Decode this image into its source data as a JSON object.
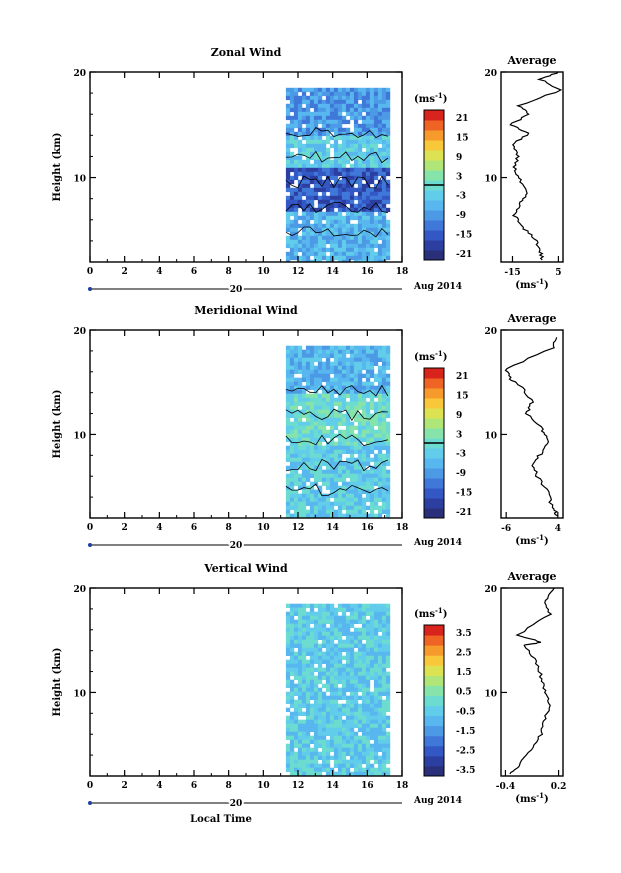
{
  "colorbar_colors": [
    "#2a2f7a",
    "#2c3fa0",
    "#3357c4",
    "#3f78d9",
    "#4c9ae5",
    "#58b7ee",
    "#62cdea",
    "#6ddcd0",
    "#86e3a9",
    "#b0e577",
    "#dde253",
    "#f8c83a",
    "#f79a2c",
    "#ef6424",
    "#d9231d"
  ],
  "date_label": "Aug 2014",
  "date_marker": "20",
  "xlabel": "Local Time",
  "ylabel": "Height (km)",
  "cb_unit": "(ms",
  "cb_unit_sup": "-1",
  "avg_unit": "(ms",
  "avg_unit_sup": "-1",
  "panels": [
    {
      "title": "Zonal Wind",
      "avg_title": "Average",
      "cb_ticks": [
        "21",
        "15",
        "9",
        "3",
        "-3",
        "-9",
        "-15",
        "-21"
      ],
      "avg_xticks": [
        "-15",
        "5"
      ]
    },
    {
      "title": "Meridional Wind",
      "avg_title": "Average",
      "cb_ticks": [
        "21",
        "15",
        "9",
        "3",
        "-3",
        "-9",
        "-15",
        "-21"
      ],
      "avg_xticks": [
        "-6",
        "4"
      ]
    },
    {
      "title": "Vertical Wind",
      "avg_title": "Average",
      "cb_ticks": [
        "3.5",
        "2.5",
        "1.5",
        "0.5",
        "-0.5",
        "-1.5",
        "-2.5",
        "-3.5"
      ],
      "avg_xticks": [
        "-0.4",
        "0.2"
      ]
    }
  ],
  "chart_data": [
    {
      "type": "heatmap",
      "title": "Zonal Wind",
      "xlabel": "",
      "ylabel": "Height (km)",
      "xlim": [
        0,
        18
      ],
      "ylim": [
        2,
        20
      ],
      "xticks": [
        "0",
        "2",
        "4",
        "6",
        "8",
        "10",
        "12",
        "14",
        "16",
        "18"
      ],
      "yticks": [
        "10",
        "20"
      ],
      "data_x_range": [
        11.3,
        17.3
      ],
      "colorbar": {
        "unit": "ms-1",
        "ticks": [
          21,
          15,
          9,
          3,
          -3,
          -9,
          -15,
          -21
        ]
      },
      "profile": {
        "title": "Average",
        "xlim": [
          -20,
          7
        ],
        "xticks": [
          -15,
          5
        ],
        "points": [
          [
            5,
            20
          ],
          [
            -3,
            19.3
          ],
          [
            6,
            18.3
          ],
          [
            -12,
            16.8
          ],
          [
            -8,
            16
          ],
          [
            -16,
            15
          ],
          [
            -8,
            14.2
          ],
          [
            -15,
            13.1
          ],
          [
            -13,
            12
          ],
          [
            -14,
            10.8
          ],
          [
            -12,
            9.8
          ],
          [
            -9,
            8.5
          ],
          [
            -12,
            7.5
          ],
          [
            -14,
            6.4
          ],
          [
            -11,
            5.3
          ],
          [
            -5,
            4.2
          ],
          [
            -3,
            3.1
          ],
          [
            -2,
            2.2
          ]
        ]
      }
    },
    {
      "type": "heatmap",
      "title": "Meridional Wind",
      "xlabel": "",
      "ylabel": "Height (km)",
      "xlim": [
        0,
        18
      ],
      "ylim": [
        2,
        20
      ],
      "xticks": [
        "0",
        "2",
        "4",
        "6",
        "8",
        "10",
        "12",
        "14",
        "16",
        "18"
      ],
      "yticks": [
        "10",
        "20"
      ],
      "data_x_range": [
        11.3,
        17.3
      ],
      "colorbar": {
        "unit": "ms-1",
        "ticks": [
          21,
          15,
          9,
          3,
          -3,
          -9,
          -15,
          -21
        ]
      },
      "profile": {
        "title": "Average",
        "xlim": [
          -7,
          5
        ],
        "xticks": [
          -6,
          4
        ],
        "points": [
          [
            4,
            19.3
          ],
          [
            3,
            18.3
          ],
          [
            -6,
            16.3
          ],
          [
            -5,
            15.3
          ],
          [
            -3,
            14.5
          ],
          [
            -1,
            13.1
          ],
          [
            -2,
            12
          ],
          [
            1,
            10.5
          ],
          [
            2,
            9.5
          ],
          [
            1,
            8.3
          ],
          [
            -1,
            7.2
          ],
          [
            0,
            6
          ],
          [
            2,
            4.5
          ],
          [
            3,
            3
          ],
          [
            4,
            2.2
          ]
        ]
      }
    },
    {
      "type": "heatmap",
      "title": "Vertical Wind",
      "xlabel": "Local Time",
      "ylabel": "Height (km)",
      "xlim": [
        0,
        18
      ],
      "ylim": [
        2,
        20
      ],
      "xticks": [
        "0",
        "2",
        "4",
        "6",
        "8",
        "10",
        "12",
        "14",
        "16",
        "18"
      ],
      "yticks": [
        "10",
        "20"
      ],
      "data_x_range": [
        11.3,
        17.3
      ],
      "colorbar": {
        "unit": "ms-1",
        "ticks": [
          3.5,
          2.5,
          1.5,
          0.5,
          -0.5,
          -1.5,
          -2.5,
          -3.5
        ]
      },
      "profile": {
        "title": "Average",
        "xlim": [
          -0.45,
          0.25
        ],
        "xticks": [
          -0.4,
          0.2
        ],
        "points": [
          [
            0.15,
            20
          ],
          [
            0.05,
            18.8
          ],
          [
            0.1,
            17.5
          ],
          [
            -0.25,
            15.5
          ],
          [
            0.0,
            14.8
          ],
          [
            -0.2,
            14.5
          ],
          [
            -0.05,
            13
          ],
          [
            0.0,
            11.5
          ],
          [
            0.05,
            10.2
          ],
          [
            0.1,
            9
          ],
          [
            0.05,
            7.5
          ],
          [
            0.0,
            6
          ],
          [
            -0.1,
            4.5
          ],
          [
            -0.25,
            3
          ],
          [
            -0.35,
            2.2
          ]
        ]
      }
    }
  ]
}
